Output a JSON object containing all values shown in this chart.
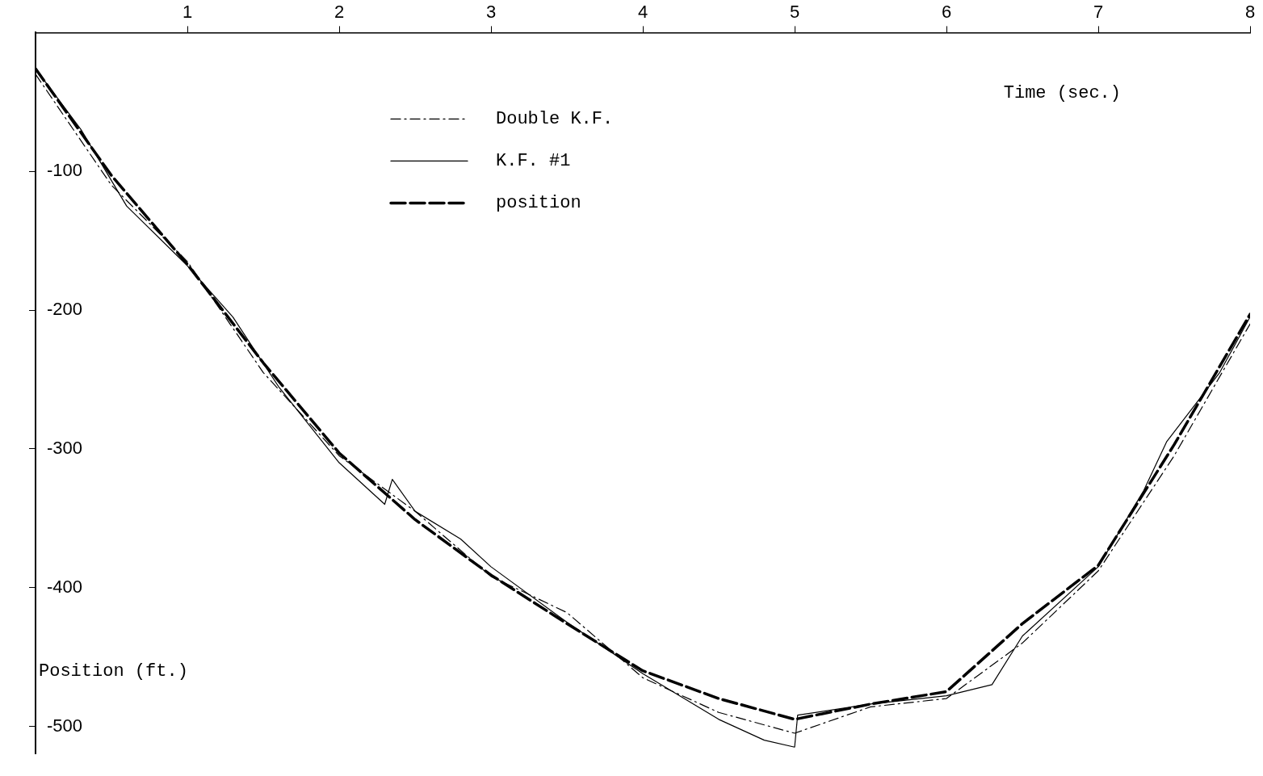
{
  "chart_data": {
    "type": "line",
    "xlabel": "Time (sec.)",
    "ylabel": "Position (ft.)",
    "xlim": [
      0,
      8
    ],
    "ylim": [
      -520,
      0
    ],
    "xticks": [
      1,
      2,
      3,
      4,
      5,
      6,
      7,
      8
    ],
    "yticks": [
      -100,
      -200,
      -300,
      -400,
      -500
    ],
    "grid": false,
    "legend": "top left",
    "marker": "none",
    "series": [
      {
        "name": "Double K.F.",
        "color": "#000000",
        "line_style": "dashdot",
        "x": [
          0,
          0.5,
          1,
          1.5,
          2,
          2.5,
          3,
          3.5,
          4,
          4.5,
          5,
          5.5,
          6,
          6.5,
          7,
          7.5,
          8
        ],
        "values": [
          -30,
          -110,
          -165,
          -245,
          -305,
          -345,
          -392,
          -418,
          -465,
          -490,
          -505,
          -486,
          -480,
          -440,
          -388,
          -305,
          -210
        ]
      },
      {
        "name": "K.F. #1",
        "color": "#000000",
        "line_style": "solid",
        "x": [
          0,
          0.3,
          0.6,
          1,
          1.3,
          1.6,
          2,
          2.3,
          2.35,
          2.5,
          2.8,
          3,
          3.5,
          4,
          4.5,
          4.8,
          5,
          5.02,
          5.5,
          6,
          6.3,
          6.5,
          7,
          7.3,
          7.45,
          7.8,
          8
        ],
        "values": [
          -26,
          -70,
          -125,
          -168,
          -205,
          -255,
          -310,
          -340,
          -322,
          -345,
          -365,
          -385,
          -425,
          -462,
          -495,
          -510,
          -515,
          -492,
          -484,
          -478,
          -470,
          -435,
          -385,
          -330,
          -295,
          -245,
          -205
        ]
      },
      {
        "name": "position",
        "color": "#000000",
        "line_style": "dashed",
        "x": [
          0,
          0.5,
          1,
          1.5,
          2,
          2.5,
          3,
          3.5,
          4,
          4.5,
          5,
          5.5,
          6,
          6.5,
          7,
          7.5,
          8
        ],
        "values": [
          -26,
          -103,
          -167,
          -238,
          -303,
          -351,
          -391,
          -426,
          -460,
          -480,
          -495,
          -484,
          -475,
          -426,
          -384,
          -297,
          -203
        ]
      }
    ]
  }
}
